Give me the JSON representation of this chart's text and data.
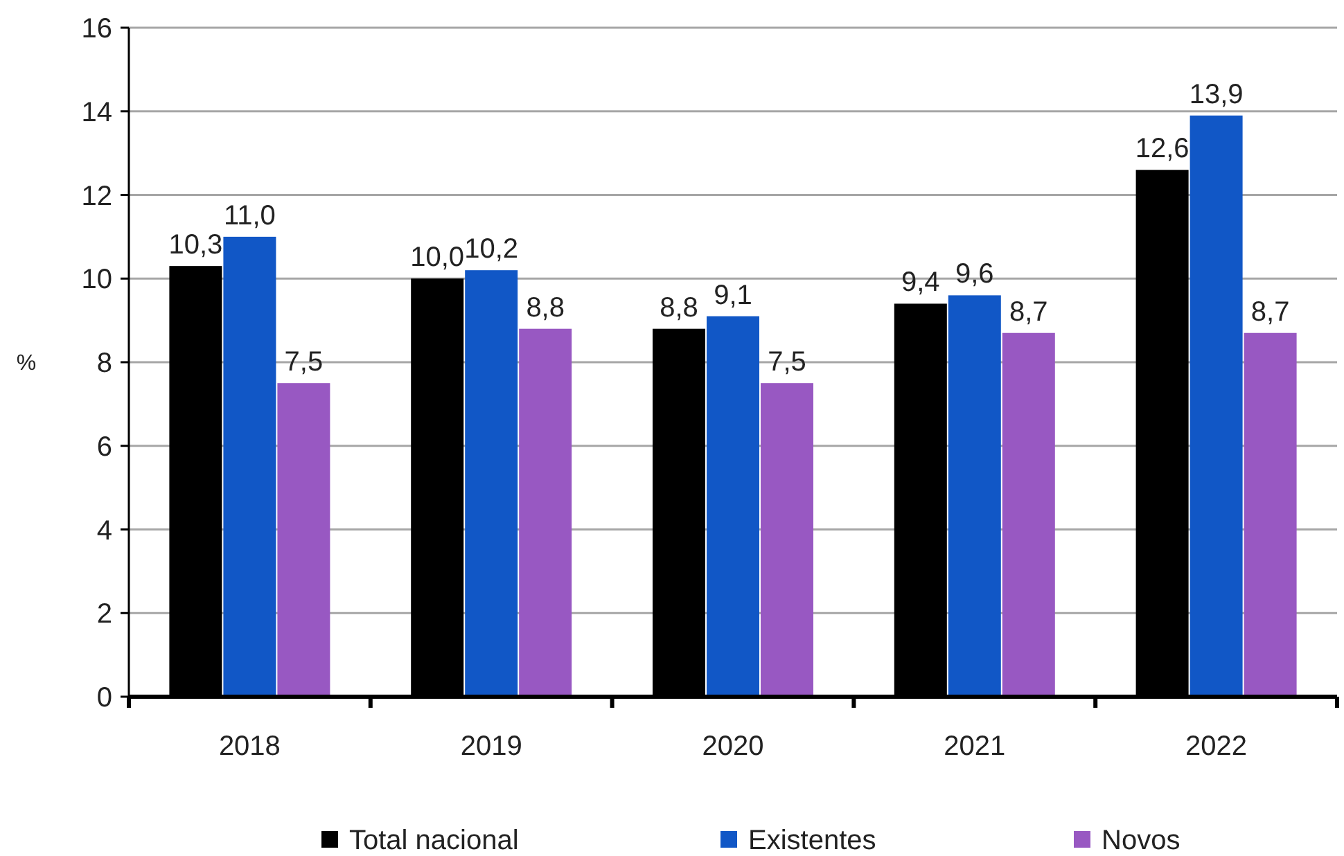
{
  "chart_data": {
    "type": "bar",
    "ylabel": "%",
    "categories": [
      "2018",
      "2019",
      "2020",
      "2021",
      "2022"
    ],
    "series": [
      {
        "name": "Total nacional",
        "color": "#000000",
        "values": [
          10.3,
          10.0,
          8.8,
          9.4,
          12.6
        ],
        "value_labels": [
          "10,3",
          "10,0",
          "8,8",
          "9,4",
          "12,6"
        ]
      },
      {
        "name": "Existentes",
        "color": "#1157c6",
        "values": [
          11.0,
          10.2,
          9.1,
          9.6,
          13.9
        ],
        "value_labels": [
          "11,0",
          "10,2",
          "9,1",
          "9,6",
          "13,9"
        ]
      },
      {
        "name": "Novos",
        "color": "#9858c2",
        "values": [
          7.5,
          8.8,
          7.5,
          8.7,
          8.7
        ],
        "value_labels": [
          "7,5",
          "8,8",
          "7,5",
          "8,7",
          "8,7"
        ]
      }
    ],
    "ylim": [
      0,
      16
    ],
    "yticks": [
      0,
      2,
      4,
      6,
      8,
      10,
      12,
      14,
      16
    ],
    "grid": "y",
    "legend": "bottom"
  }
}
